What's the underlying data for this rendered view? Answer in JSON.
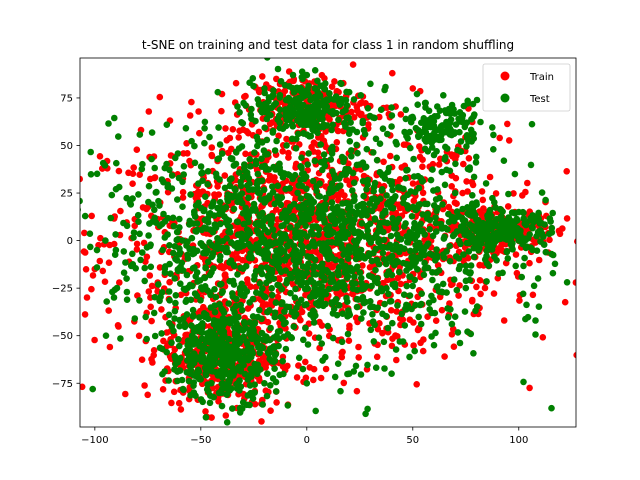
{
  "chart_data": {
    "type": "scatter",
    "title": "t-SNE on training and test data for class 1 in random shuffling",
    "xlabel": "",
    "ylabel": "",
    "xlim": [
      -107,
      127
    ],
    "ylim": [
      -98,
      96
    ],
    "xticks": [
      -100,
      -50,
      0,
      50,
      100
    ],
    "yticks": [
      -75,
      -50,
      -25,
      0,
      25,
      50,
      75
    ],
    "xtick_labels": [
      "−100",
      "−50",
      "0",
      "50",
      "100"
    ],
    "ytick_labels": [
      "−75",
      "−50",
      "−25",
      "0",
      "25",
      "50",
      "75"
    ],
    "grid": false,
    "legend_position": "top-right",
    "series": [
      {
        "name": "Train",
        "color": "#ff0000",
        "clusters": [
          {
            "cx": 0,
            "cy": 0,
            "rx": 85,
            "ry": 55,
            "n": 1400
          },
          {
            "cx": -40,
            "cy": -60,
            "rx": 25,
            "ry": 25,
            "n": 350
          },
          {
            "cx": 90,
            "cy": 5,
            "rx": 25,
            "ry": 12,
            "n": 200
          },
          {
            "cx": 0,
            "cy": 70,
            "rx": 25,
            "ry": 15,
            "n": 200
          }
        ],
        "points": [
          {
            "x": -100,
            "y": -15
          },
          {
            "x": 82,
            "y": -28
          },
          {
            "x": 65,
            "y": -61
          },
          {
            "x": 55,
            "y": -52
          },
          {
            "x": 57,
            "y": -40
          },
          {
            "x": -67,
            "y": -18
          },
          {
            "x": -16,
            "y": 58
          },
          {
            "x": -26,
            "y": -85
          },
          {
            "x": -33,
            "y": -88
          },
          {
            "x": 113,
            "y": 13
          },
          {
            "x": 110,
            "y": 9
          },
          {
            "x": 95,
            "y": 18
          },
          {
            "x": 91,
            "y": 54
          },
          {
            "x": 63,
            "y": 43
          },
          {
            "x": 48,
            "y": 50
          },
          {
            "x": 50,
            "y": 80
          },
          {
            "x": 15,
            "y": 78
          },
          {
            "x": -40,
            "y": 77
          },
          {
            "x": 110,
            "y": 10
          }
        ]
      },
      {
        "name": "Test",
        "color": "#008000",
        "clusters": [
          {
            "cx": 0,
            "cy": 0,
            "rx": 82,
            "ry": 53,
            "n": 1600
          },
          {
            "cx": -40,
            "cy": -60,
            "rx": 22,
            "ry": 22,
            "n": 400
          },
          {
            "cx": 90,
            "cy": 5,
            "rx": 22,
            "ry": 10,
            "n": 220
          },
          {
            "cx": 0,
            "cy": 70,
            "rx": 22,
            "ry": 13,
            "n": 220
          },
          {
            "cx": 65,
            "cy": 60,
            "rx": 15,
            "ry": 12,
            "n": 120
          }
        ],
        "points": [
          {
            "x": -99,
            "y": -5
          },
          {
            "x": 110,
            "y": 9
          },
          {
            "x": 93,
            "y": 42
          },
          {
            "x": 88,
            "y": 48
          },
          {
            "x": 68,
            "y": 58
          },
          {
            "x": 56,
            "y": 70
          },
          {
            "x": 52,
            "y": 77
          },
          {
            "x": 47,
            "y": 55
          },
          {
            "x": 20,
            "y": 78
          },
          {
            "x": 0,
            "y": 87
          },
          {
            "x": 5,
            "y": 84
          },
          {
            "x": -27,
            "y": 83
          },
          {
            "x": -20,
            "y": 80
          },
          {
            "x": -42,
            "y": 78
          },
          {
            "x": -90,
            "y": 27
          },
          {
            "x": -95,
            "y": 0
          },
          {
            "x": -85,
            "y": -20
          },
          {
            "x": -72,
            "y": -38
          },
          {
            "x": -60,
            "y": -45
          },
          {
            "x": -55,
            "y": -70
          },
          {
            "x": -40,
            "y": -87
          },
          {
            "x": -30,
            "y": -85
          },
          {
            "x": -20,
            "y": -75
          },
          {
            "x": 0,
            "y": -75
          },
          {
            "x": 20,
            "y": -70
          },
          {
            "x": 40,
            "y": -70
          },
          {
            "x": 60,
            "y": -55
          },
          {
            "x": 70,
            "y": -40
          },
          {
            "x": 75,
            "y": -25
          },
          {
            "x": 85,
            "y": -12
          },
          {
            "x": 100,
            "y": 0
          },
          {
            "x": 115,
            "y": 10
          },
          {
            "x": 100,
            "y": 15
          },
          {
            "x": 80,
            "y": 20
          },
          {
            "x": 70,
            "y": 25
          },
          {
            "x": 40,
            "y": 70
          },
          {
            "x": 40,
            "y": 60
          },
          {
            "x": 60,
            "y": 45
          },
          {
            "x": 25,
            "y": 40
          }
        ]
      }
    ]
  }
}
